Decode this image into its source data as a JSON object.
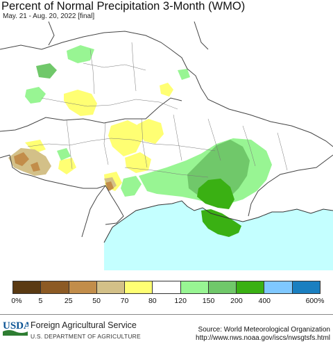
{
  "title": "Percent of Normal Precipitation 3-Month (WMO)",
  "subtitle": "May. 21 - Aug. 20, 2022 [final]",
  "legend": {
    "colors": [
      "#5a3a13",
      "#8c5a24",
      "#c28d4a",
      "#d3c088",
      "#ffff73",
      "#ffffff",
      "#98f593",
      "#70c86a",
      "#3ab013",
      "#7fc8ff",
      "#1a7fc0"
    ],
    "labels": [
      "0%",
      "5",
      "25",
      "50",
      "70",
      "80",
      "120",
      "150",
      "200",
      "400",
      "600%"
    ]
  },
  "colors": {
    "sea": "#c4ffff",
    "land": "#ffffff",
    "border": "#444444"
  },
  "footer": {
    "logo_text": "USDA",
    "agency": "Foreign Agricultural Service",
    "department": "U.S. DEPARTMENT OF AGRICULTURE",
    "source": "Source: World Meteorological Organization",
    "url": "http://www.nws.noaa.gov/iscs/nwsgtsfs.html"
  }
}
